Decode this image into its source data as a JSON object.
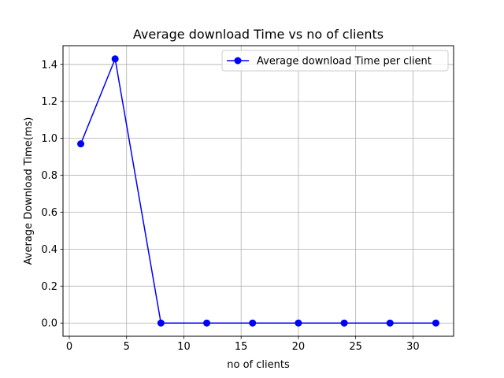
{
  "chart_data": {
    "type": "line",
    "title": "Average download Time vs no of clients",
    "xlabel": "no of clients",
    "ylabel": "Average Download Time(ms)",
    "xlim": [
      -0.55,
      33.55
    ],
    "ylim": [
      -0.0715,
      1.5015
    ],
    "xticks": [
      0,
      5,
      10,
      15,
      20,
      25,
      30
    ],
    "yticks": [
      0.0,
      0.2,
      0.4,
      0.6,
      0.8,
      1.0,
      1.2,
      1.4
    ],
    "xtick_labels": [
      "0",
      "5",
      "10",
      "15",
      "20",
      "25",
      "30"
    ],
    "ytick_labels": [
      "0.0",
      "0.2",
      "0.4",
      "0.6",
      "0.8",
      "1.0",
      "1.2",
      "1.4"
    ],
    "grid": true,
    "legend_position": "upper right",
    "series": [
      {
        "name": "Average download Time per client",
        "color": "#0000ff",
        "marker": "circle",
        "x": [
          1,
          4,
          8,
          12,
          16,
          20,
          24,
          28,
          32
        ],
        "y": [
          0.97,
          1.43,
          0.0,
          0.0,
          0.0,
          0.0,
          0.0,
          0.0,
          0.0
        ]
      }
    ]
  }
}
